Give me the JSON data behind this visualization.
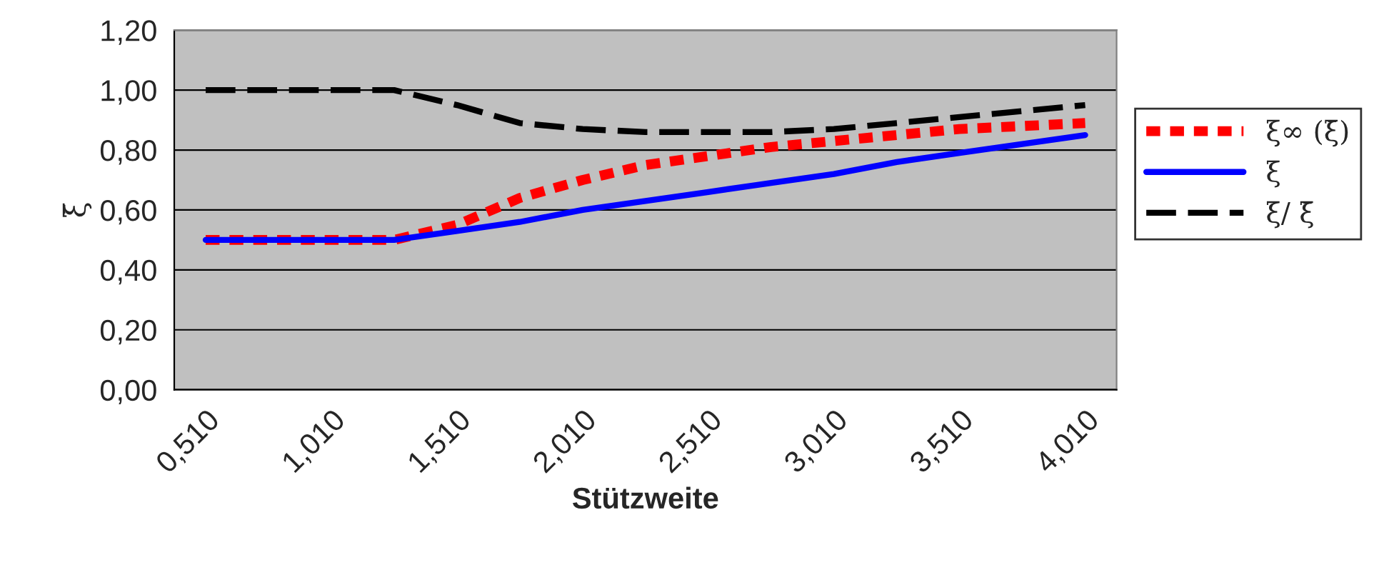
{
  "chart_data": {
    "type": "line",
    "xlabel": "Stützweite",
    "ylabel": "ξ̄",
    "categories": [
      "0,510",
      null,
      "1,010",
      null,
      "1,510",
      null,
      "2,010",
      null,
      "2,510",
      null,
      "3,010",
      null,
      "3,510",
      null,
      "4,010"
    ],
    "series": [
      {
        "name": "ξ∞ (ξ̄)",
        "color": "#ff0000",
        "line_style": "dotted",
        "values": [
          0.5,
          0.5,
          0.5,
          0.5,
          0.55,
          0.64,
          0.7,
          0.75,
          0.78,
          0.81,
          0.83,
          0.85,
          0.87,
          0.88,
          0.89
        ]
      },
      {
        "name": "ξ",
        "color": "#0000ff",
        "line_style": "solid",
        "values": [
          0.5,
          0.5,
          0.5,
          0.5,
          0.53,
          0.56,
          0.6,
          0.63,
          0.66,
          0.69,
          0.72,
          0.76,
          0.79,
          0.82,
          0.85
        ]
      },
      {
        "name": "ξ/ ξ̄",
        "color": "#000000",
        "line_style": "dashed",
        "values": [
          1.0,
          1.0,
          1.0,
          1.0,
          0.95,
          0.89,
          0.87,
          0.86,
          0.86,
          0.86,
          0.87,
          0.89,
          0.91,
          0.93,
          0.95
        ]
      }
    ],
    "ylim": [
      0,
      1.2
    ],
    "yticks": [
      {
        "value": 0,
        "label": "0,00"
      },
      {
        "value": 0.2,
        "label": "0,20"
      },
      {
        "value": 0.4,
        "label": "0,40"
      },
      {
        "value": 0.6,
        "label": "0,60"
      },
      {
        "value": 0.8,
        "label": "0,80"
      },
      {
        "value": 1.0,
        "label": "1,00"
      },
      {
        "value": 1.2,
        "label": "1,20"
      }
    ],
    "grid": "y",
    "legend": "right",
    "marker": "none"
  }
}
